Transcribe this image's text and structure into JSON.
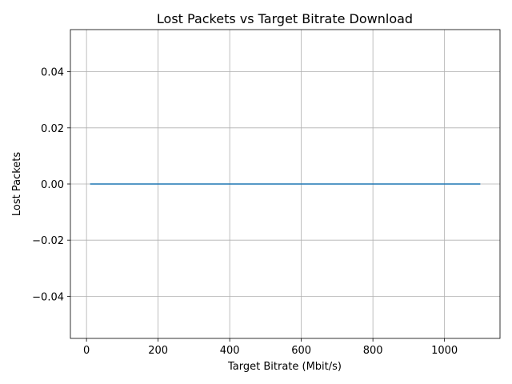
{
  "chart_data": {
    "type": "line",
    "title": "Lost Packets vs Target Bitrate Download",
    "xlabel": "Target Bitrate (Mbit/s)",
    "ylabel": "Lost Packets",
    "xlim": [
      -45,
      1155
    ],
    "ylim": [
      -0.055,
      0.055
    ],
    "xticks": [
      0,
      200,
      400,
      600,
      800,
      1000
    ],
    "xtick_labels": [
      "0",
      "200",
      "400",
      "600",
      "800",
      "1000"
    ],
    "yticks": [
      -0.04,
      -0.02,
      0.0,
      0.02,
      0.04
    ],
    "ytick_labels": [
      "−0.04",
      "−0.02",
      "0.00",
      "0.02",
      "0.04"
    ],
    "grid": true,
    "series": [
      {
        "color": "#1f77b4",
        "x": [
          10,
          1100
        ],
        "y": [
          0,
          0
        ]
      }
    ]
  }
}
